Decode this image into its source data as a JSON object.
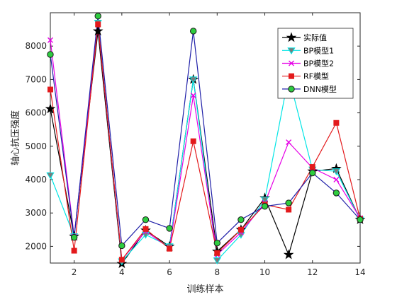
{
  "chart_data": {
    "type": "line",
    "title": "",
    "xlabel": "训练样本",
    "ylabel": "轴心抗压强度",
    "xlim": [
      1,
      14
    ],
    "ylim": [
      1500,
      9000
    ],
    "xticks": [
      2,
      4,
      6,
      8,
      10,
      12,
      14
    ],
    "yticks": [
      2000,
      3000,
      4000,
      5000,
      6000,
      7000,
      8000
    ],
    "grid": false,
    "legend_position": "top-right",
    "x": [
      1,
      2,
      3,
      4,
      5,
      6,
      7,
      8,
      9,
      10,
      11,
      12,
      13,
      14
    ],
    "series": [
      {
        "name": "实际值",
        "color": "#000000",
        "marker": "star",
        "values": [
          6120,
          2300,
          8450,
          1480,
          2480,
          2000,
          7000,
          1850,
          2500,
          3450,
          1750,
          4250,
          4330,
          2800
        ]
      },
      {
        "name": "BP模型1",
        "color": "#00e5e5",
        "marker": "triangle-down",
        "values": [
          4130,
          2300,
          8700,
          1550,
          2350,
          2000,
          7000,
          1580,
          2350,
          3400,
          7100,
          4300,
          4250,
          2800
        ]
      },
      {
        "name": "BP模型2",
        "color": "#e600e6",
        "marker": "x",
        "values": [
          8180,
          2300,
          8650,
          1600,
          2450,
          1950,
          6520,
          1750,
          2420,
          3300,
          5120,
          4350,
          4000,
          2850
        ]
      },
      {
        "name": "RF模型",
        "color": "#e31a1c",
        "marker": "square",
        "values": [
          6700,
          1870,
          8650,
          1600,
          2520,
          1930,
          5150,
          1800,
          2500,
          3250,
          3100,
          4380,
          5700,
          2820
        ]
      },
      {
        "name": "DNN模型",
        "color": "#1f1fa8",
        "marker": "circle",
        "marker_fill": "#2ecc40",
        "values": [
          7750,
          2270,
          8900,
          2020,
          2800,
          2540,
          8450,
          2100,
          2800,
          3200,
          3300,
          4200,
          3600,
          2800
        ]
      }
    ]
  }
}
